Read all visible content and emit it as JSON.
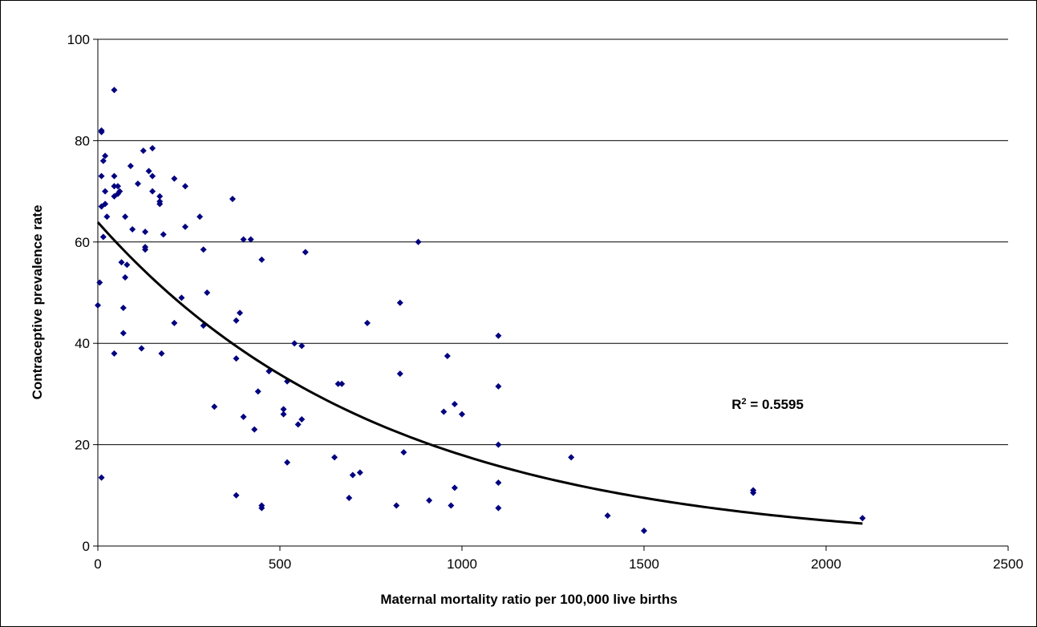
{
  "chart_data": {
    "type": "scatter",
    "title": "",
    "xlabel": "Maternal mortality ratio per 100,000 live births",
    "ylabel": "Contraceptive prevalence rate",
    "xlim": [
      0,
      2500
    ],
    "ylim": [
      0,
      100
    ],
    "xticks": [
      "0",
      "500",
      "1000",
      "1500",
      "2000",
      "2500"
    ],
    "yticks": [
      "0",
      "20",
      "40",
      "60",
      "80",
      "100"
    ],
    "grid": "horizontal",
    "legend": "none",
    "annotation": {
      "r2_label": "R",
      "r2_exp": "2",
      "r2_value": " = 0.5595",
      "x": 1800,
      "y": 28
    },
    "point_color": "#000080",
    "trend_color": "#000000",
    "trendline": {
      "type": "exponential",
      "a": 63.9,
      "b": -0.00127,
      "x_range": [
        0,
        2100
      ]
    },
    "points": [
      [
        10,
        82
      ],
      [
        10,
        81.7
      ],
      [
        45,
        90
      ],
      [
        20,
        77
      ],
      [
        15,
        76
      ],
      [
        10,
        73
      ],
      [
        45,
        73
      ],
      [
        20,
        70
      ],
      [
        45,
        71
      ],
      [
        55,
        71
      ],
      [
        60,
        70
      ],
      [
        55,
        69.5
      ],
      [
        45,
        69
      ],
      [
        10,
        67
      ],
      [
        20,
        67.5
      ],
      [
        25,
        65
      ],
      [
        15,
        61
      ],
      [
        5,
        52
      ],
      [
        0,
        47.5
      ],
      [
        10,
        13.5
      ],
      [
        90,
        75
      ],
      [
        75,
        65
      ],
      [
        80,
        55.5
      ],
      [
        65,
        56
      ],
      [
        70,
        47
      ],
      [
        75,
        53
      ],
      [
        95,
        62.5
      ],
      [
        70,
        42
      ],
      [
        45,
        38
      ],
      [
        110,
        71.5
      ],
      [
        125,
        78
      ],
      [
        140,
        74
      ],
      [
        150,
        78.5
      ],
      [
        150,
        73
      ],
      [
        150,
        70
      ],
      [
        130,
        62
      ],
      [
        130,
        59
      ],
      [
        130,
        58.5
      ],
      [
        120,
        39
      ],
      [
        170,
        69
      ],
      [
        170,
        68
      ],
      [
        170,
        67.5
      ],
      [
        175,
        38
      ],
      [
        180,
        61.5
      ],
      [
        210,
        72.5
      ],
      [
        210,
        44
      ],
      [
        240,
        71
      ],
      [
        240,
        63
      ],
      [
        230,
        49
      ],
      [
        280,
        65
      ],
      [
        290,
        58.5
      ],
      [
        300,
        50
      ],
      [
        290,
        43.5
      ],
      [
        320,
        27.5
      ],
      [
        370,
        68.5
      ],
      [
        380,
        44.5
      ],
      [
        390,
        46
      ],
      [
        380,
        37
      ],
      [
        400,
        60.5
      ],
      [
        420,
        60.5
      ],
      [
        450,
        56.5
      ],
      [
        470,
        34.5
      ],
      [
        400,
        25.5
      ],
      [
        440,
        30.5
      ],
      [
        430,
        23
      ],
      [
        380,
        10
      ],
      [
        450,
        8
      ],
      [
        450,
        7.5
      ],
      [
        510,
        27
      ],
      [
        510,
        26
      ],
      [
        520,
        32.5
      ],
      [
        520,
        16.5
      ],
      [
        540,
        40
      ],
      [
        560,
        39.5
      ],
      [
        570,
        58
      ],
      [
        560,
        25
      ],
      [
        550,
        24
      ],
      [
        650,
        17.5
      ],
      [
        660,
        32
      ],
      [
        670,
        32
      ],
      [
        700,
        14
      ],
      [
        720,
        14.5
      ],
      [
        690,
        9.5
      ],
      [
        740,
        44
      ],
      [
        830,
        48
      ],
      [
        830,
        34
      ],
      [
        840,
        18.5
      ],
      [
        820,
        8
      ],
      [
        880,
        60
      ],
      [
        910,
        9
      ],
      [
        960,
        37.5
      ],
      [
        950,
        26.5
      ],
      [
        980,
        28
      ],
      [
        1000,
        26
      ],
      [
        980,
        11.5
      ],
      [
        970,
        8
      ],
      [
        1100,
        41.5
      ],
      [
        1100,
        31.5
      ],
      [
        1100,
        20
      ],
      [
        1100,
        12.5
      ],
      [
        1100,
        7.5
      ],
      [
        1300,
        17.5
      ],
      [
        1400,
        6
      ],
      [
        1500,
        3
      ],
      [
        1800,
        11
      ],
      [
        1800,
        10.5
      ],
      [
        2100,
        5.5
      ]
    ]
  }
}
